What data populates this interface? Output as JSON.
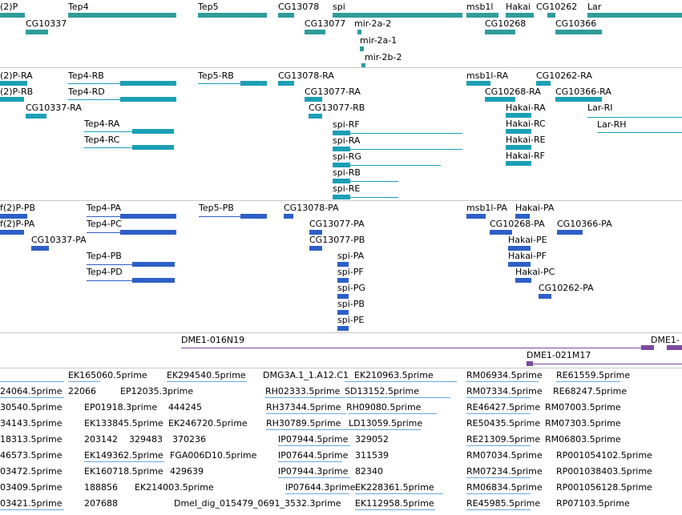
{
  "colors": {
    "gene": "#2e9d9b",
    "mrna": "#1b9fb4",
    "cds": "#2d5fc7",
    "clone": "#7a4a9e",
    "est": "#6fa8d6",
    "separator": "#c8c8c8"
  },
  "tracks": {
    "genes": {
      "labels": [
        "(2)P",
        "Tep4",
        "Tep5",
        "CG13078",
        "spi",
        "msb1l",
        "Hakai",
        "CG10262",
        "Lar",
        "CG10337",
        "CG13077",
        "CG10268",
        "CG10366",
        "mir-2a-2",
        "mir-2a-1",
        "mir-2b-2"
      ]
    },
    "transcripts": {
      "labels": [
        "(2)P-RA",
        "(2)P-RB",
        "Tep4-RB",
        "Tep4-RD",
        "CG10337-RA",
        "Tep4-RA",
        "Tep4-RC",
        "Tep5-RB",
        "CG13078-RA",
        "CG13077-RA",
        "CG13077-RB",
        "spi-RF",
        "spi-RA",
        "spi-RG",
        "spi-RB",
        "spi-RE",
        "msb1l-RA",
        "CG10262-RA",
        "CG10268-RA",
        "CG10366-RA",
        "Hakai-RA",
        "Hakai-RC",
        "Hakai-RE",
        "Hakai-RF",
        "Lar-RI",
        "Lar-RH"
      ]
    },
    "proteins": {
      "labels": [
        "f(2)P-PB",
        "f(2)P-PA",
        "CG10337-PA",
        "Tep4-PA",
        "Tep4-PC",
        "Tep4-PB",
        "Tep4-PD",
        "Tep5-PB",
        "CG13078-PA",
        "CG13077-PA",
        "CG13077-PB",
        "spi-PA",
        "spi-PF",
        "spi-PG",
        "spi-PB",
        "spi-PE",
        "msb1l-PA",
        "Hakai-PA",
        "CG10268-PA",
        "CG10366-PA",
        "Hakai-PE",
        "Hakai-PF",
        "Hakai-PC",
        "CG10262-PA"
      ]
    },
    "clones": {
      "labels": [
        "DME1-016N19",
        "DME1-021M17",
        "DME1-"
      ]
    },
    "ests": {
      "labels": [
        "EK165060.5prime",
        "EK294540.5prime",
        "DMG3A.1_1.A12.C1",
        "EK210963.5prime",
        "RM06934.5prime",
        "RE61559.5prime",
        "24064.5prime",
        "22066",
        "EP12035.3prime",
        "RH02333.5prime",
        "SD13152.5prime",
        "RM07334.5prime",
        "RE68247.5prime",
        "30540.5prime",
        "EP01918.3prime",
        "444245",
        "RH37344.5prime",
        "RH09080.5prime",
        "RE46427.5prime",
        "RM07003.5prime",
        "34143.5prime",
        "EK133845.5prime",
        "EK246720.5prime",
        "RH30789.5prime",
        "LD13059.5prime",
        "RE50435.5prime",
        "RM07303.5prime",
        "18313.5prime",
        "203142",
        "329483",
        "370236",
        "IP07944.5prime",
        "329052",
        "RE21309.5prime",
        "RM06803.5prime",
        "46573.5prime",
        "EK149362.5prime",
        "FGA006D10.5prime",
        "IP07644.5prime",
        "311539",
        "RM07034.5prime",
        "RP001054102.5prime",
        "03472.5prime",
        "EK160718.5prime",
        "429639",
        "IP07944.3prime",
        "82340",
        "RM07234.5prime",
        "RP001038403.5prime",
        "03409.5prime",
        "188856",
        "EK214003.5prime",
        "IP07644.3prime",
        "EK228361.5prime",
        "RM06834.5prime",
        "RP001056128.5prime",
        "03421.5prime",
        "207688",
        "Dmel_dig_015479_0691_3532.3prime",
        "EK112958.5prime",
        "RE45985.5prime",
        "RP07103.5prime"
      ]
    }
  }
}
